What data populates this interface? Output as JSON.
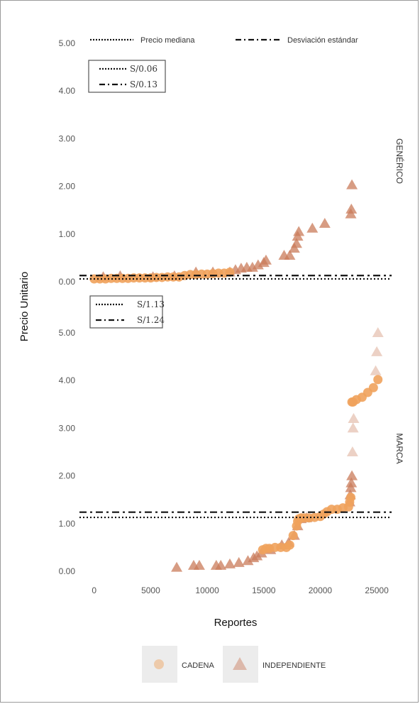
{
  "line_legend": {
    "median_label": "Precio mediana",
    "sd_label": "Desviación estándar"
  },
  "colors": {
    "cadena": "#F0A25C",
    "independiente": "#C97B5A",
    "line": "#111111"
  },
  "chart_data": {
    "type": "scatter",
    "xlabel": "Reportes",
    "ylabel": "Precio Unitario",
    "x_ticks": [
      0,
      5000,
      10000,
      15000,
      20000,
      25000
    ],
    "y_ticks": [
      "0.00",
      "1.00",
      "2.00",
      "3.00",
      "4.00",
      "5.00"
    ],
    "xlim": [
      -800,
      26500
    ],
    "ylim": [
      0,
      5
    ],
    "legend": [
      {
        "name": "CADENA",
        "shape": "circle"
      },
      {
        "name": "INDEPENDIENTE",
        "shape": "triangle"
      }
    ],
    "panels": [
      {
        "facet_label": "GENÉRICO",
        "median_label": "S/0.06",
        "sd_label": "S/0.13",
        "median": 0.06,
        "sd": 0.13,
        "cadena": {
          "x": [
            0,
            500,
            1000,
            1500,
            2000,
            2500,
            3000,
            3500,
            4000,
            4500,
            5000,
            5500,
            6000,
            6500,
            7000,
            7500,
            8000,
            8500,
            9000,
            9500,
            10000,
            10500,
            11000,
            11500,
            12000
          ],
          "y": [
            0.06,
            0.06,
            0.06,
            0.07,
            0.07,
            0.07,
            0.07,
            0.08,
            0.08,
            0.08,
            0.08,
            0.09,
            0.09,
            0.1,
            0.1,
            0.1,
            0.13,
            0.15,
            0.15,
            0.16,
            0.16,
            0.17,
            0.18,
            0.18,
            0.2
          ]
        },
        "independiente": {
          "x": [
            800,
            2300,
            5200,
            7100,
            9000,
            10500,
            12000,
            12500,
            13000,
            13500,
            14000,
            14500,
            15000,
            15200,
            16800,
            17300,
            17700,
            17900,
            18000,
            18100,
            19300,
            20400,
            22700,
            22750,
            22800
          ],
          "y": [
            0.1,
            0.12,
            0.1,
            0.12,
            0.2,
            0.2,
            0.2,
            0.25,
            0.28,
            0.3,
            0.3,
            0.35,
            0.4,
            0.45,
            0.55,
            0.55,
            0.7,
            0.8,
            0.95,
            1.05,
            1.12,
            1.22,
            1.42,
            1.52,
            2.03
          ]
        }
      },
      {
        "facet_label": "MARCA",
        "median_label": "S/1.13",
        "sd_label": "S/1.24",
        "median": 1.13,
        "sd": 1.24,
        "cadena": {
          "x": [
            14900,
            15200,
            15500,
            16000,
            16500,
            17000,
            17300,
            17600,
            17900,
            18000,
            18100,
            18300,
            18600,
            19000,
            19500,
            20000,
            20300,
            20600,
            21000,
            21500,
            22000,
            22500,
            22600,
            22700,
            22800,
            22900,
            23200,
            23700,
            24200,
            24700,
            25100
          ],
          "y": [
            0.45,
            0.48,
            0.48,
            0.5,
            0.5,
            0.5,
            0.55,
            0.75,
            0.95,
            1.05,
            1.1,
            1.12,
            1.12,
            1.12,
            1.13,
            1.15,
            1.2,
            1.25,
            1.3,
            1.3,
            1.33,
            1.35,
            1.45,
            1.55,
            3.55,
            3.55,
            3.6,
            3.65,
            3.75,
            3.85,
            4.02
          ]
        },
        "independiente": {
          "x": [
            7300,
            8800,
            9300,
            10800,
            11200,
            12000,
            12800,
            13600,
            14100,
            14400,
            14800,
            15600,
            16600,
            17200,
            17700,
            18000,
            18300,
            18800,
            22600,
            22650,
            22700,
            22750,
            22800,
            22850,
            22900,
            22950,
            24900,
            25000,
            25100
          ],
          "y": [
            0.08,
            0.12,
            0.12,
            0.12,
            0.12,
            0.15,
            0.18,
            0.22,
            0.28,
            0.32,
            0.38,
            0.45,
            0.55,
            0.6,
            0.75,
            0.95,
            1.1,
            1.12,
            1.45,
            1.6,
            1.75,
            1.85,
            2.0,
            2.5,
            3.0,
            3.2,
            4.2,
            4.6,
            5.0
          ]
        }
      }
    ]
  }
}
